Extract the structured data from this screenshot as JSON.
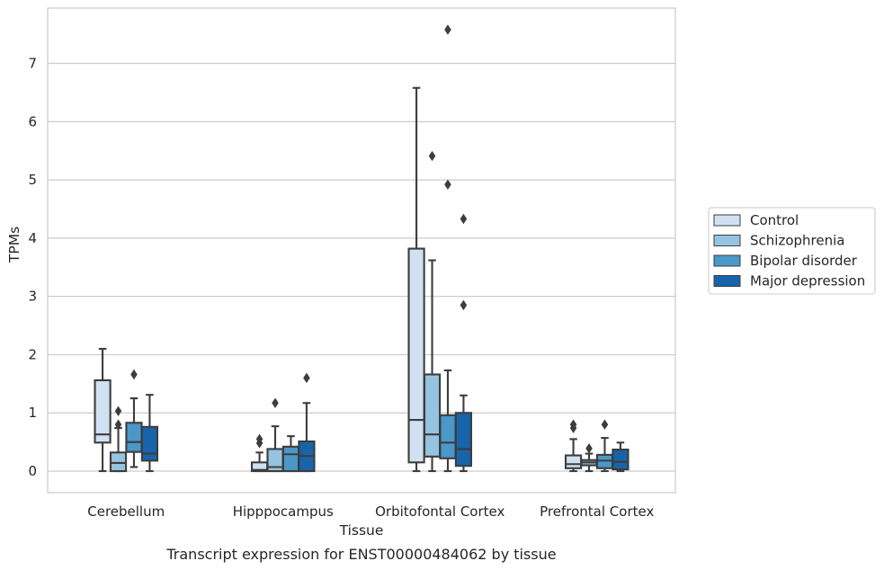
{
  "chart_data": {
    "type": "box",
    "title": "",
    "caption": "Transcript expression for ENST00000484062 by tissue",
    "xlabel": "Tissue",
    "ylabel": "TPMs",
    "ylim": [
      -0.37,
      7.95
    ],
    "yticks": [
      0,
      1,
      2,
      3,
      4,
      5,
      6,
      7
    ],
    "grid": "horizontal",
    "legend_position": "right",
    "categories": [
      "Cerebellum",
      "Hipppocampus",
      "Orbitofontal Cortex",
      "Prefrontal Cortex"
    ],
    "series": [
      {
        "name": "Control",
        "color": "#d0e1f2",
        "boxes": [
          {
            "whisker_low": 0.0,
            "q1": 0.49,
            "median": 0.63,
            "q3": 1.56,
            "whisker_high": 2.1,
            "outliers": []
          },
          {
            "whisker_low": 0.0,
            "q1": 0.0,
            "median": 0.02,
            "q3": 0.15,
            "whisker_high": 0.32,
            "outliers": [
              0.48,
              0.55
            ]
          },
          {
            "whisker_low": 0.0,
            "q1": 0.15,
            "median": 0.88,
            "q3": 3.82,
            "whisker_high": 6.58,
            "outliers": []
          },
          {
            "whisker_low": 0.0,
            "q1": 0.05,
            "median": 0.12,
            "q3": 0.27,
            "whisker_high": 0.55,
            "outliers": [
              0.74,
              0.8
            ]
          }
        ]
      },
      {
        "name": "Schizophrenia",
        "color": "#94c4df",
        "boxes": [
          {
            "whisker_low": 0.0,
            "q1": 0.0,
            "median": 0.14,
            "q3": 0.32,
            "whisker_high": 0.74,
            "outliers": [
              0.8,
              1.03
            ]
          },
          {
            "whisker_low": 0.0,
            "q1": 0.0,
            "median": 0.07,
            "q3": 0.38,
            "whisker_high": 0.77,
            "outliers": [
              1.17
            ]
          },
          {
            "whisker_low": 0.0,
            "q1": 0.25,
            "median": 0.63,
            "q3": 1.66,
            "whisker_high": 3.62,
            "outliers": [
              5.41
            ]
          },
          {
            "whisker_low": 0.0,
            "q1": 0.1,
            "median": 0.15,
            "q3": 0.19,
            "whisker_high": 0.3,
            "outliers": [
              0.39
            ]
          }
        ]
      },
      {
        "name": "Bipolar disorder",
        "color": "#4a98c9",
        "boxes": [
          {
            "whisker_low": 0.07,
            "q1": 0.33,
            "median": 0.5,
            "q3": 0.83,
            "whisker_high": 1.25,
            "outliers": [
              1.66
            ]
          },
          {
            "whisker_low": 0.0,
            "q1": 0.0,
            "median": 0.29,
            "q3": 0.42,
            "whisker_high": 0.6,
            "outliers": []
          },
          {
            "whisker_low": 0.0,
            "q1": 0.22,
            "median": 0.49,
            "q3": 0.96,
            "whisker_high": 1.73,
            "outliers": [
              4.92,
              7.58
            ]
          },
          {
            "whisker_low": 0.0,
            "q1": 0.05,
            "median": 0.18,
            "q3": 0.28,
            "whisker_high": 0.57,
            "outliers": [
              0.8
            ]
          }
        ]
      },
      {
        "name": "Major depression",
        "color": "#1764ab",
        "boxes": [
          {
            "whisker_low": 0.0,
            "q1": 0.18,
            "median": 0.3,
            "q3": 0.76,
            "whisker_high": 1.31,
            "outliers": []
          },
          {
            "whisker_low": 0.0,
            "q1": 0.0,
            "median": 0.26,
            "q3": 0.51,
            "whisker_high": 1.17,
            "outliers": [
              1.6
            ]
          },
          {
            "whisker_low": 0.0,
            "q1": 0.09,
            "median": 0.38,
            "q3": 1.0,
            "whisker_high": 1.3,
            "outliers": [
              2.85,
              4.33
            ]
          },
          {
            "whisker_low": 0.0,
            "q1": 0.03,
            "median": 0.16,
            "q3": 0.37,
            "whisker_high": 0.49,
            "outliers": []
          }
        ]
      }
    ]
  }
}
